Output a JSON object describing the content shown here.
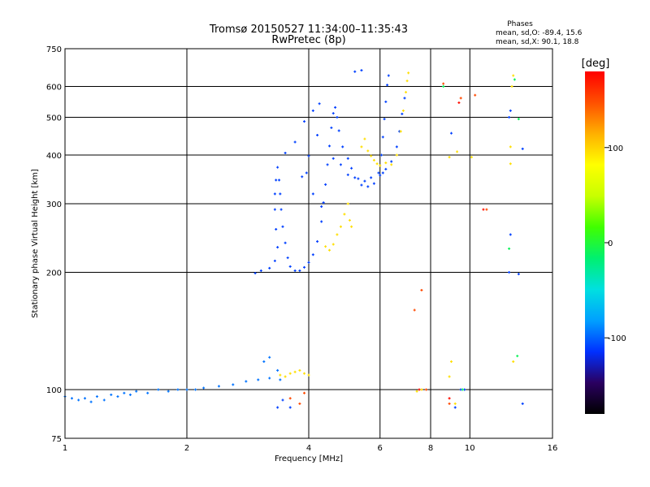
{
  "chart_data": {
    "type": "scatter",
    "title": "Tromsø 20150527 11:34:00–11:35:43",
    "subtitle": "RwPretec (8p)",
    "xlabel": "Frequency [MHz]",
    "ylabel": "Stationary phase Virtual Height [km]",
    "x_scale": "log",
    "y_scale": "log",
    "xlim": [
      1,
      16
    ],
    "ylim": [
      75,
      750
    ],
    "x_ticks": [
      1,
      2,
      4,
      6,
      8,
      10,
      16
    ],
    "y_ticks": [
      75,
      100,
      200,
      300,
      400,
      500,
      600,
      750
    ],
    "grid": true,
    "stats_title": "Phases",
    "stats_o": "mean, sd,O: -89.4, 15.6",
    "stats_x": "mean, sd,X:  90.1, 18.8",
    "colorbar": {
      "label": "[deg]",
      "range": [
        -180,
        180
      ],
      "ticks": [
        100,
        0,
        -100
      ],
      "colors": [
        "#000000",
        "#2a0060",
        "#0030ff",
        "#00a0ff",
        "#00e0e0",
        "#00f070",
        "#40ff00",
        "#c8ff00",
        "#ffff00",
        "#ffb000",
        "#ff5000",
        "#ff0000"
      ]
    },
    "series": [
      {
        "phase": -95,
        "points": [
          [
            1.0,
            96
          ],
          [
            1.04,
            95
          ],
          [
            1.08,
            94
          ],
          [
            1.12,
            95
          ],
          [
            1.16,
            93
          ],
          [
            1.2,
            96
          ],
          [
            1.25,
            94
          ],
          [
            1.3,
            97
          ],
          [
            1.35,
            96
          ],
          [
            1.4,
            98
          ],
          [
            1.45,
            97
          ],
          [
            1.5,
            99
          ],
          [
            1.6,
            98
          ],
          [
            1.7,
            100
          ],
          [
            1.8,
            99
          ],
          [
            1.9,
            100
          ],
          [
            2.0,
            100
          ],
          [
            2.1,
            100
          ],
          [
            2.2,
            101
          ],
          [
            2.4,
            102
          ],
          [
            2.6,
            103
          ],
          [
            2.8,
            105
          ],
          [
            3.0,
            106
          ],
          [
            3.2,
            107
          ],
          [
            3.4,
            106
          ],
          [
            3.1,
            118
          ],
          [
            3.2,
            121
          ],
          [
            3.35,
            112
          ]
        ]
      },
      {
        "phase": -110,
        "points": [
          [
            2.95,
            199
          ],
          [
            3.05,
            202
          ],
          [
            3.2,
            205
          ],
          [
            3.3,
            214
          ],
          [
            3.35,
            232
          ],
          [
            3.32,
            258
          ],
          [
            3.3,
            290
          ],
          [
            3.3,
            318
          ],
          [
            3.32,
            345
          ],
          [
            3.35,
            372
          ],
          [
            3.38,
            345
          ],
          [
            3.4,
            318
          ],
          [
            3.42,
            290
          ],
          [
            3.45,
            262
          ],
          [
            3.5,
            238
          ],
          [
            3.55,
            218
          ],
          [
            3.6,
            207
          ],
          [
            3.7,
            202
          ],
          [
            3.8,
            202
          ],
          [
            3.9,
            206
          ],
          [
            4.0,
            212
          ],
          [
            4.1,
            222
          ],
          [
            4.2,
            240
          ],
          [
            4.3,
            270
          ],
          [
            4.35,
            302
          ],
          [
            4.4,
            336
          ],
          [
            4.45,
            378
          ],
          [
            4.5,
            422
          ],
          [
            4.55,
            470
          ],
          [
            4.6,
            512
          ],
          [
            4.65,
            530
          ],
          [
            4.7,
            500
          ],
          [
            4.75,
            462
          ],
          [
            4.85,
            420
          ],
          [
            5.0,
            392
          ],
          [
            5.1,
            370
          ],
          [
            5.2,
            350
          ],
          [
            5.4,
            335
          ],
          [
            5.6,
            332
          ],
          [
            5.8,
            338
          ],
          [
            5.95,
            360
          ],
          [
            6.05,
            400
          ],
          [
            6.1,
            445
          ],
          [
            6.15,
            495
          ],
          [
            6.2,
            548
          ],
          [
            6.25,
            605
          ],
          [
            6.3,
            640
          ],
          [
            3.95,
            360
          ],
          [
            3.85,
            352
          ],
          [
            4.1,
            318
          ],
          [
            4.3,
            295
          ],
          [
            4.0,
            398
          ],
          [
            4.2,
            450
          ],
          [
            4.6,
            392
          ],
          [
            4.8,
            378
          ],
          [
            5.0,
            356
          ],
          [
            5.3,
            348
          ],
          [
            5.5,
            343
          ],
          [
            5.7,
            350
          ],
          [
            6.0,
            355
          ],
          [
            6.1,
            360
          ],
          [
            6.2,
            368
          ],
          [
            6.4,
            385
          ],
          [
            6.6,
            420
          ],
          [
            6.7,
            460
          ],
          [
            6.8,
            510
          ],
          [
            6.9,
            560
          ],
          [
            5.2,
            655
          ],
          [
            5.4,
            660
          ],
          [
            3.9,
            488
          ],
          [
            4.1,
            520
          ],
          [
            4.25,
            542
          ],
          [
            3.7,
            432
          ],
          [
            3.5,
            405
          ],
          [
            9.0,
            455
          ],
          [
            12.5,
            500
          ],
          [
            12.6,
            520
          ],
          [
            13.5,
            415
          ],
          [
            12.6,
            250
          ],
          [
            12.5,
            200
          ],
          [
            13.2,
            198
          ],
          [
            13.5,
            92
          ],
          [
            9.5,
            100
          ],
          [
            9.7,
            100
          ],
          [
            9.2,
            90
          ],
          [
            3.35,
            90
          ],
          [
            3.45,
            94
          ],
          [
            3.6,
            90
          ]
        ]
      },
      {
        "phase": 95,
        "points": [
          [
            3.4,
            109
          ],
          [
            3.5,
            108
          ],
          [
            3.6,
            110
          ],
          [
            3.7,
            111
          ],
          [
            3.8,
            112
          ],
          [
            3.9,
            110
          ],
          [
            4.0,
            109
          ],
          [
            4.4,
            233
          ],
          [
            4.5,
            228
          ],
          [
            4.6,
            236
          ],
          [
            4.7,
            250
          ],
          [
            4.8,
            262
          ],
          [
            4.9,
            282
          ],
          [
            5.0,
            300
          ],
          [
            5.05,
            272
          ],
          [
            5.1,
            262
          ],
          [
            5.4,
            420
          ],
          [
            5.5,
            440
          ],
          [
            5.6,
            410
          ],
          [
            5.7,
            398
          ],
          [
            5.8,
            388
          ],
          [
            5.9,
            380
          ],
          [
            6.0,
            376
          ],
          [
            6.2,
            382
          ],
          [
            6.4,
            378
          ],
          [
            6.6,
            400
          ],
          [
            6.75,
            460
          ],
          [
            6.85,
            520
          ],
          [
            6.95,
            580
          ],
          [
            7.0,
            620
          ],
          [
            7.05,
            650
          ],
          [
            8.9,
            395
          ],
          [
            9.3,
            408
          ],
          [
            10.1,
            395
          ],
          [
            12.6,
            420
          ],
          [
            12.6,
            380
          ],
          [
            12.8,
            118
          ],
          [
            7.4,
            99
          ],
          [
            7.6,
            100
          ],
          [
            8.9,
            108
          ],
          [
            9.0,
            118
          ],
          [
            9.2,
            92
          ],
          [
            12.8,
            640
          ],
          [
            12.7,
            600
          ]
        ]
      },
      {
        "phase": 150,
        "points": [
          [
            3.6,
            95
          ],
          [
            3.8,
            92
          ],
          [
            3.9,
            98
          ],
          [
            7.6,
            180
          ],
          [
            7.3,
            160
          ],
          [
            7.8,
            100
          ],
          [
            8.9,
            92
          ],
          [
            8.6,
            610
          ],
          [
            9.5,
            560
          ],
          [
            10.3,
            570
          ],
          [
            11.0,
            290
          ]
        ]
      },
      {
        "phase": -10,
        "points": [
          [
            12.9,
            625
          ],
          [
            13.1,
            122
          ],
          [
            12.5,
            230
          ],
          [
            13.2,
            495
          ],
          [
            9.6,
            100
          ],
          [
            8.6,
            600
          ]
        ]
      },
      {
        "phase": 175,
        "points": [
          [
            9.4,
            545
          ],
          [
            10.8,
            290
          ],
          [
            8.9,
            95
          ],
          [
            7.5,
            100
          ]
        ]
      }
    ]
  }
}
